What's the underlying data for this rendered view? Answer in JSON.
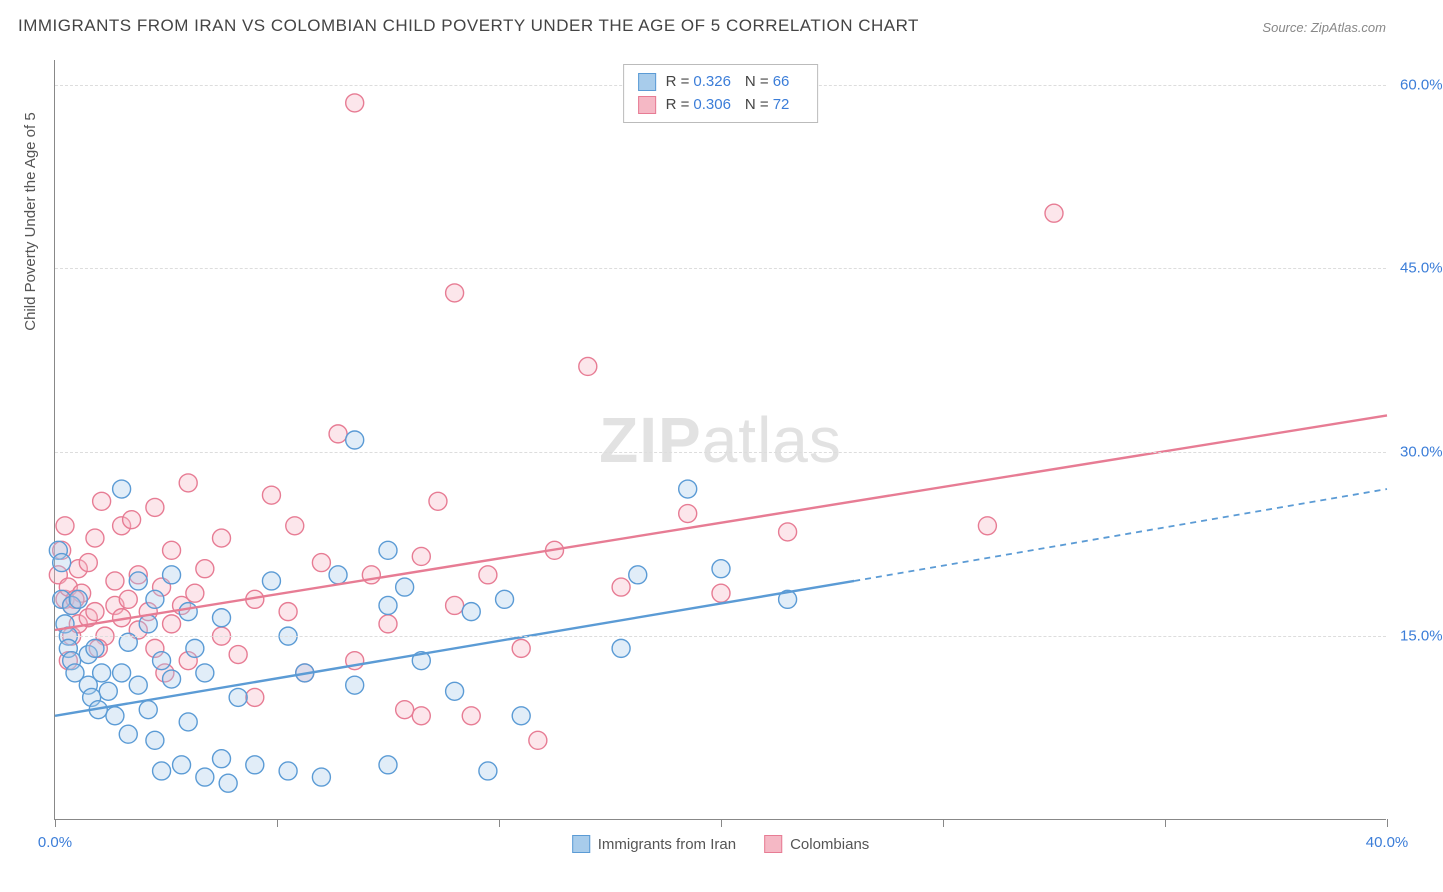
{
  "title": "IMMIGRANTS FROM IRAN VS COLOMBIAN CHILD POVERTY UNDER THE AGE OF 5 CORRELATION CHART",
  "source_label": "Source:",
  "source_value": "ZipAtlas.com",
  "watermark": {
    "part1": "ZIP",
    "part2": "atlas"
  },
  "y_axis_title": "Child Poverty Under the Age of 5",
  "chart": {
    "type": "scatter",
    "background_color": "#ffffff",
    "grid_color": "#dddddd",
    "axis_color": "#888888",
    "text_color": "#555555",
    "value_color": "#3b7dd8",
    "xlim": [
      0,
      40
    ],
    "ylim": [
      0,
      62
    ],
    "x_ticks": [
      0,
      6.67,
      13.33,
      20,
      26.67,
      33.33,
      40
    ],
    "x_tick_labels": [
      "0.0%",
      "",
      "",
      "",
      "",
      "",
      "40.0%"
    ],
    "y_gridlines": [
      15,
      30,
      45,
      60
    ],
    "y_tick_labels": [
      "15.0%",
      "30.0%",
      "45.0%",
      "60.0%"
    ],
    "marker_radius": 9,
    "marker_stroke_width": 1.4,
    "marker_fill_opacity": 0.35,
    "line_width": 2.4,
    "series": [
      {
        "name": "Immigrants from Iran",
        "color": "#5b9bd5",
        "fill": "#a8cceb",
        "R": "0.326",
        "N": "66",
        "trend": {
          "x1": 0,
          "y1": 8.5,
          "x2": 24,
          "y2": 19.5,
          "dash_x2": 40,
          "dash_y2": 27
        },
        "points": [
          [
            0.2,
            18
          ],
          [
            0.3,
            16
          ],
          [
            0.4,
            15
          ],
          [
            0.4,
            14
          ],
          [
            0.5,
            13
          ],
          [
            0.5,
            17.5
          ],
          [
            0.6,
            12
          ],
          [
            0.7,
            18
          ],
          [
            1,
            11
          ],
          [
            1,
            13.5
          ],
          [
            1.1,
            10
          ],
          [
            1.2,
            14
          ],
          [
            1.3,
            9
          ],
          [
            1.4,
            12
          ],
          [
            1.6,
            10.5
          ],
          [
            1.8,
            8.5
          ],
          [
            2,
            27
          ],
          [
            2,
            12
          ],
          [
            2.2,
            7
          ],
          [
            2.2,
            14.5
          ],
          [
            2.5,
            11
          ],
          [
            2.5,
            19.5
          ],
          [
            2.8,
            9
          ],
          [
            2.8,
            16
          ],
          [
            3,
            6.5
          ],
          [
            3,
            18
          ],
          [
            3.2,
            4
          ],
          [
            3.2,
            13
          ],
          [
            3.5,
            11.5
          ],
          [
            3.5,
            20
          ],
          [
            3.8,
            4.5
          ],
          [
            4,
            17
          ],
          [
            4,
            8
          ],
          [
            4.2,
            14
          ],
          [
            4.5,
            3.5
          ],
          [
            4.5,
            12
          ],
          [
            5,
            5
          ],
          [
            5,
            16.5
          ],
          [
            5.2,
            3
          ],
          [
            5.5,
            10
          ],
          [
            6,
            4.5
          ],
          [
            6.5,
            19.5
          ],
          [
            7,
            4
          ],
          [
            7,
            15
          ],
          [
            7.5,
            12
          ],
          [
            8,
            3.5
          ],
          [
            8.5,
            20
          ],
          [
            9,
            31
          ],
          [
            9,
            11
          ],
          [
            10,
            4.5
          ],
          [
            10,
            17.5
          ],
          [
            10,
            22
          ],
          [
            10.5,
            19
          ],
          [
            11,
            13
          ],
          [
            12,
            10.5
          ],
          [
            12.5,
            17
          ],
          [
            13,
            4
          ],
          [
            13.5,
            18
          ],
          [
            14,
            8.5
          ],
          [
            17,
            14
          ],
          [
            17.5,
            20
          ],
          [
            19,
            27
          ],
          [
            20,
            20.5
          ],
          [
            22,
            18
          ],
          [
            0.1,
            22
          ],
          [
            0.2,
            21
          ]
        ]
      },
      {
        "name": "Colombians",
        "color": "#e77c94",
        "fill": "#f5b8c5",
        "R": "0.306",
        "N": "72",
        "trend": {
          "x1": 0,
          "y1": 15.5,
          "x2": 40,
          "y2": 33
        },
        "points": [
          [
            0.1,
            20
          ],
          [
            0.2,
            22
          ],
          [
            0.3,
            18
          ],
          [
            0.3,
            24
          ],
          [
            0.4,
            13
          ],
          [
            0.4,
            19
          ],
          [
            0.5,
            17.5
          ],
          [
            0.5,
            15
          ],
          [
            0.7,
            16
          ],
          [
            0.7,
            20.5
          ],
          [
            0.8,
            18.5
          ],
          [
            1,
            21
          ],
          [
            1,
            16.5
          ],
          [
            1.2,
            17
          ],
          [
            1.2,
            23
          ],
          [
            1.4,
            26
          ],
          [
            1.5,
            15
          ],
          [
            1.8,
            17.5
          ],
          [
            1.8,
            19.5
          ],
          [
            2,
            16.5
          ],
          [
            2,
            24
          ],
          [
            2.2,
            18
          ],
          [
            2.5,
            15.5
          ],
          [
            2.5,
            20
          ],
          [
            2.8,
            17
          ],
          [
            3,
            25.5
          ],
          [
            3,
            14
          ],
          [
            3.2,
            19
          ],
          [
            3.5,
            16
          ],
          [
            3.5,
            22
          ],
          [
            3.8,
            17.5
          ],
          [
            4,
            13
          ],
          [
            4,
            27.5
          ],
          [
            4.2,
            18.5
          ],
          [
            4.5,
            20.5
          ],
          [
            5,
            15
          ],
          [
            5,
            23
          ],
          [
            5.5,
            13.5
          ],
          [
            6,
            18
          ],
          [
            6,
            10
          ],
          [
            6.5,
            26.5
          ],
          [
            7,
            17
          ],
          [
            7.5,
            12
          ],
          [
            8,
            21
          ],
          [
            8.5,
            31.5
          ],
          [
            9,
            58.5
          ],
          [
            9,
            13
          ],
          [
            9.5,
            20
          ],
          [
            10,
            16
          ],
          [
            10.5,
            9
          ],
          [
            11,
            21.5
          ],
          [
            11.5,
            26
          ],
          [
            12,
            17.5
          ],
          [
            12,
            43
          ],
          [
            12.5,
            8.5
          ],
          [
            13,
            20
          ],
          [
            14,
            14
          ],
          [
            14.5,
            6.5
          ],
          [
            15,
            22
          ],
          [
            16,
            37
          ],
          [
            17,
            19
          ],
          [
            19,
            25
          ],
          [
            20,
            18.5
          ],
          [
            22,
            23.5
          ],
          [
            28,
            24
          ],
          [
            30,
            49.5
          ],
          [
            0.6,
            18
          ],
          [
            1.3,
            14
          ],
          [
            2.3,
            24.5
          ],
          [
            3.3,
            12
          ],
          [
            7.2,
            24
          ],
          [
            11,
            8.5
          ]
        ]
      }
    ],
    "legend_bottom": [
      {
        "label": "Immigrants from Iran",
        "color": "#5b9bd5",
        "fill": "#a8cceb"
      },
      {
        "label": "Colombians",
        "color": "#e77c94",
        "fill": "#f5b8c5"
      }
    ]
  }
}
